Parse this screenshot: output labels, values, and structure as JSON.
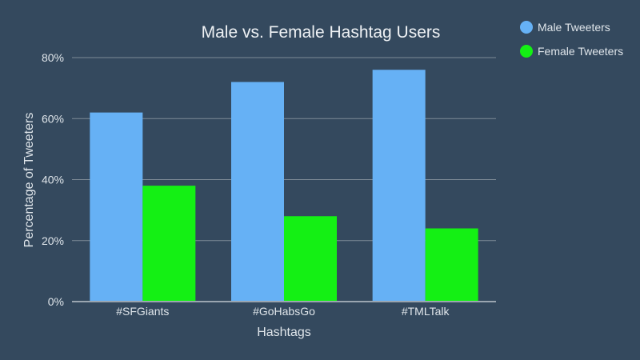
{
  "chart_data": {
    "type": "bar",
    "title": "Male vs. Female Hashtag Users",
    "xlabel": "Hashtags",
    "ylabel": "Percentage of Tweeters",
    "categories": [
      "#SFGiants",
      "#GoHabsGo",
      "#TMLTalk"
    ],
    "series": [
      {
        "name": "Male Tweeters",
        "values": [
          62,
          72,
          76
        ],
        "color": "#66b1f5"
      },
      {
        "name": "Female Tweeters",
        "values": [
          38,
          28,
          24
        ],
        "color": "#14f014"
      }
    ],
    "ylim": [
      0,
      80
    ],
    "yticks": [
      0,
      20,
      40,
      60,
      80
    ],
    "ytick_suffix": "%",
    "grid": true,
    "legend_position": "top-right"
  }
}
